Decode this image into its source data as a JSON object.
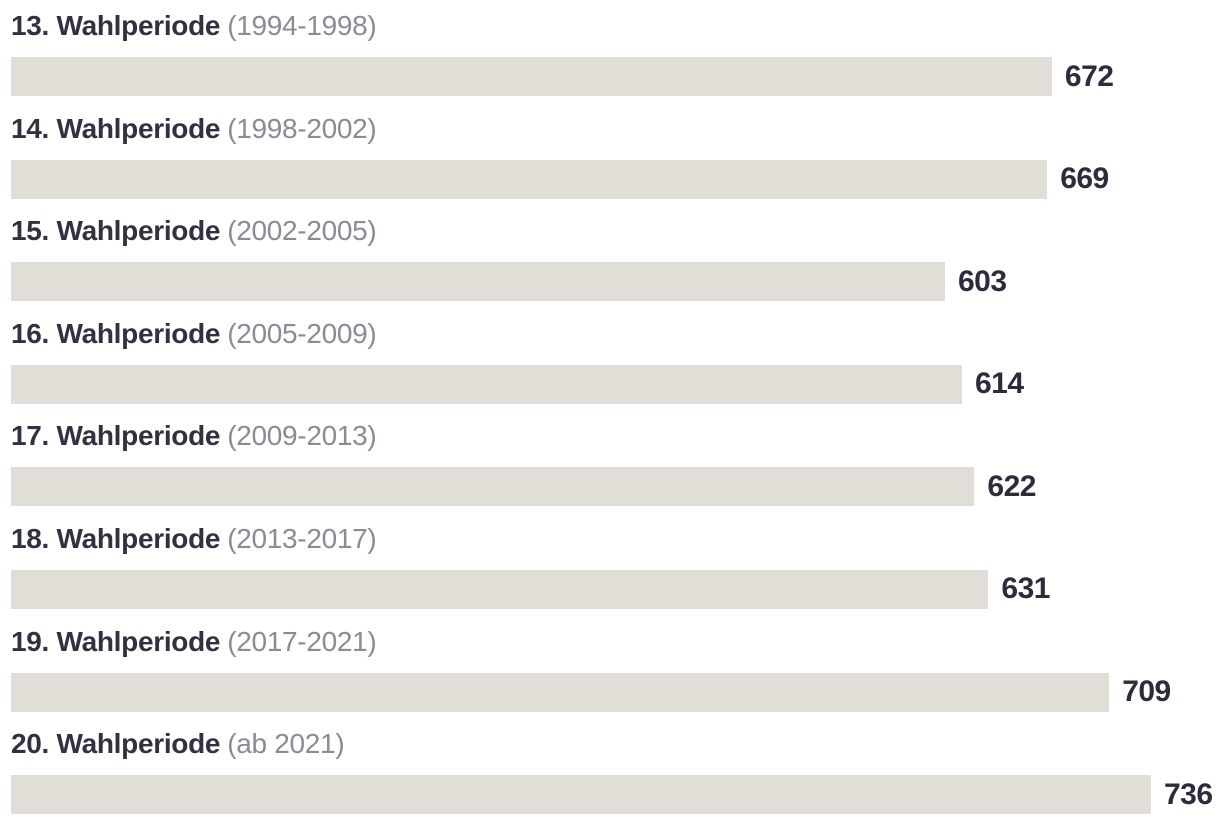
{
  "colors": {
    "background": "#ffffff",
    "bar": "#e1ded7",
    "label": "#303241",
    "period": "#8a8b95",
    "value": "#2b2d3c"
  },
  "chart_data": {
    "type": "bar",
    "orientation": "horizontal",
    "title": "",
    "categories": [
      "13. Wahlperiode",
      "14. Wahlperiode",
      "15. Wahlperiode",
      "16. Wahlperiode",
      "17. Wahlperiode",
      "18. Wahlperiode",
      "19. Wahlperiode",
      "20. Wahlperiode"
    ],
    "period_labels": [
      "(1994-1998)",
      "(1998-2002)",
      "(2002-2005)",
      "(2005-2009)",
      "(2009-2013)",
      "(2013-2017)",
      "(2017-2021)",
      "(ab 2021)"
    ],
    "values": [
      672,
      669,
      603,
      614,
      622,
      631,
      709,
      736
    ],
    "xlim": [
      0,
      736
    ],
    "grid": false,
    "axes_shown": false,
    "legend": "none",
    "value_label_position": "end-of-bar"
  }
}
